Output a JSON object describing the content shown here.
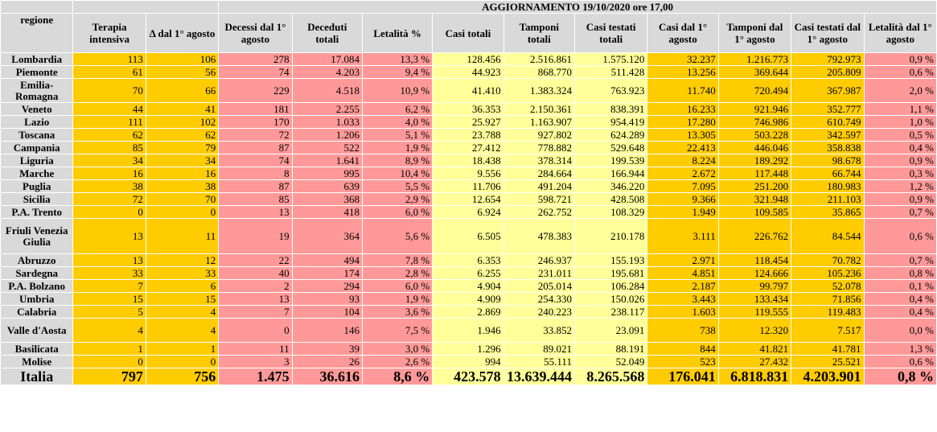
{
  "title": "AGGIORNAMENTO 19/10/2020 ore 17,00",
  "headers": [
    "regione",
    "Terapia intensiva",
    "Δ dal 1° agosto",
    "Decessi dal 1° agosto",
    "Deceduti totali",
    "Letalità %",
    "Casi totali",
    "Tamponi totali",
    "Casi testati totali",
    "Casi dal 1° agosto",
    "Tamponi dal 1° agosto",
    "Casi testati dal 1° agosto",
    "Letalità dal 1° agosto"
  ],
  "rows": [
    [
      "Lombardia",
      "113",
      "106",
      "278",
      "17.084",
      "13,3 %",
      "128.456",
      "2.516.861",
      "1.575.120",
      "32.237",
      "1.216.773",
      "792.973",
      "0,9 %"
    ],
    [
      "Piemonte",
      "61",
      "56",
      "74",
      "4.203",
      "9,4 %",
      "44.923",
      "868.770",
      "511.428",
      "13.256",
      "369.644",
      "205.809",
      "0,6 %"
    ],
    [
      "Emilia-Romagna",
      "70",
      "66",
      "229",
      "4.518",
      "10,9 %",
      "41.410",
      "1.383.324",
      "763.923",
      "11.740",
      "720.494",
      "367.987",
      "2,0 %"
    ],
    [
      "Veneto",
      "44",
      "41",
      "181",
      "2.255",
      "6,2 %",
      "36.353",
      "2.150.361",
      "838.391",
      "16.233",
      "921.946",
      "352.777",
      "1,1 %"
    ],
    [
      "Lazio",
      "111",
      "102",
      "170",
      "1.033",
      "4,0 %",
      "25.927",
      "1.163.907",
      "954.419",
      "17.280",
      "746.986",
      "610.749",
      "1,0 %"
    ],
    [
      "Toscana",
      "62",
      "62",
      "72",
      "1.206",
      "5,1 %",
      "23.788",
      "927.802",
      "624.289",
      "13.305",
      "503.228",
      "342.597",
      "0,5 %"
    ],
    [
      "Campania",
      "85",
      "79",
      "87",
      "522",
      "1,9 %",
      "27.412",
      "778.882",
      "529.648",
      "22.413",
      "446.046",
      "358.838",
      "0,4 %"
    ],
    [
      "Liguria",
      "34",
      "34",
      "74",
      "1.641",
      "8,9 %",
      "18.438",
      "378.314",
      "199.539",
      "8.224",
      "189.292",
      "98.678",
      "0,9 %"
    ],
    [
      "Marche",
      "16",
      "16",
      "8",
      "995",
      "10,4 %",
      "9.556",
      "284.664",
      "166.944",
      "2.672",
      "117.448",
      "66.744",
      "0,3 %"
    ],
    [
      "Puglia",
      "38",
      "38",
      "87",
      "639",
      "5,5 %",
      "11.706",
      "491.204",
      "346.220",
      "7.095",
      "251.200",
      "180.983",
      "1,2 %"
    ],
    [
      "Sicilia",
      "72",
      "70",
      "85",
      "368",
      "2,9 %",
      "12.654",
      "598.721",
      "428.508",
      "9.366",
      "321.948",
      "211.103",
      "0,9 %"
    ],
    [
      "P.A. Trento",
      "0",
      "0",
      "13",
      "418",
      "6,0 %",
      "6.924",
      "262.752",
      "108.329",
      "1.949",
      "109.585",
      "35.865",
      "0,7 %"
    ],
    [
      "Friuli Venezia Giulia",
      "13",
      "11",
      "19",
      "364",
      "5,6 %",
      "6.505",
      "478.383",
      "210.178",
      "3.111",
      "226.762",
      "84.544",
      "0,6 %"
    ],
    [
      "Abruzzo",
      "13",
      "12",
      "22",
      "494",
      "7,8 %",
      "6.353",
      "246.937",
      "155.193",
      "2.971",
      "118.454",
      "70.782",
      "0,7 %"
    ],
    [
      "Sardegna",
      "33",
      "33",
      "40",
      "174",
      "2,8 %",
      "6.255",
      "231.011",
      "195.681",
      "4.851",
      "124.666",
      "105.236",
      "0,8 %"
    ],
    [
      "P.A. Bolzano",
      "7",
      "6",
      "2",
      "294",
      "6,0 %",
      "4.904",
      "205.014",
      "106.284",
      "2.187",
      "99.797",
      "52.078",
      "0,1 %"
    ],
    [
      "Umbria",
      "15",
      "15",
      "13",
      "93",
      "1,9 %",
      "4.909",
      "254.330",
      "150.026",
      "3.443",
      "133.434",
      "71.856",
      "0,4 %"
    ],
    [
      "Calabria",
      "5",
      "4",
      "7",
      "104",
      "3,6 %",
      "2.869",
      "240.223",
      "238.117",
      "1.603",
      "119.555",
      "119.483",
      "0,4 %"
    ],
    [
      "Valle d'Aosta",
      "4",
      "4",
      "0",
      "146",
      "7,5 %",
      "1.946",
      "33.852",
      "23.091",
      "738",
      "12.320",
      "7.517",
      "0,0 %"
    ],
    [
      "Basilicata",
      "1",
      "1",
      "11",
      "39",
      "3,0 %",
      "1.296",
      "89.021",
      "88.191",
      "844",
      "41.821",
      "41.781",
      "1,3 %"
    ],
    [
      "Molise",
      "0",
      "0",
      "3",
      "26",
      "2,6 %",
      "994",
      "55.111",
      "52.049",
      "523",
      "27.432",
      "25.521",
      "0,6 %"
    ]
  ],
  "total": [
    "Italia",
    "797",
    "756",
    "1.475",
    "36.616",
    "8,6 %",
    "423.578",
    "13.639.444",
    "8.265.568",
    "176.041",
    "6.818.831",
    "4.203.901",
    "0,8 %"
  ],
  "colors": {
    "header_gray": "#d9d9d9",
    "orange": "#ffcc00",
    "pink": "#ff9999",
    "yellow": "#ffff99"
  }
}
